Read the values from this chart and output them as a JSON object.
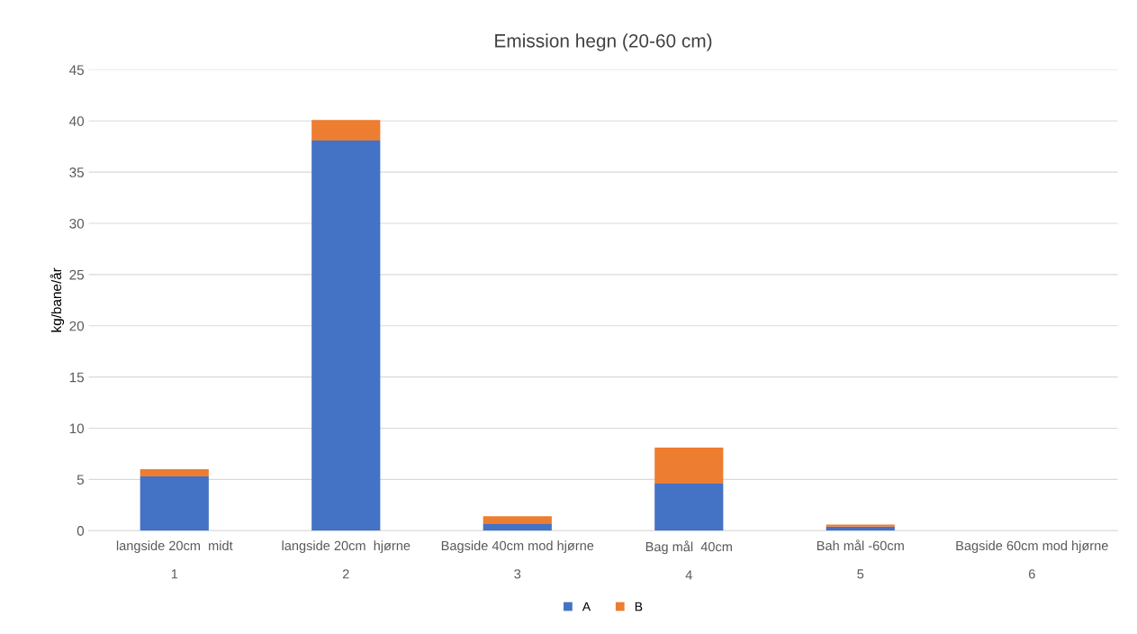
{
  "chart_data": {
    "type": "bar",
    "title": "Emission hegn (20-60 cm)",
    "ylabel": "kg/bane/år",
    "categories": [
      "langside 20cm  midt\n\n1",
      "langside 20cm  hjørne\n\n2",
      "Bagside 40cm mod hjørne\n\n3",
      "Bag mål  40cm\n\n4",
      "Bah mål -60cm\n\n5",
      "Bagside 60cm mod hjørne\n\n6"
    ],
    "series": [
      {
        "name": "A",
        "color": "#4472c4",
        "values": [
          5.3,
          38.1,
          0.7,
          4.6,
          0.4,
          0
        ]
      },
      {
        "name": "B",
        "color": "#ed7d31",
        "values": [
          0.7,
          2.0,
          0.7,
          3.5,
          0.2,
          0
        ]
      }
    ],
    "stacked": true,
    "ylim": [
      0,
      45
    ],
    "yticks": [
      0,
      5,
      10,
      15,
      20,
      25,
      30,
      35,
      40,
      45
    ],
    "grid": "y",
    "legend": "bottom"
  }
}
